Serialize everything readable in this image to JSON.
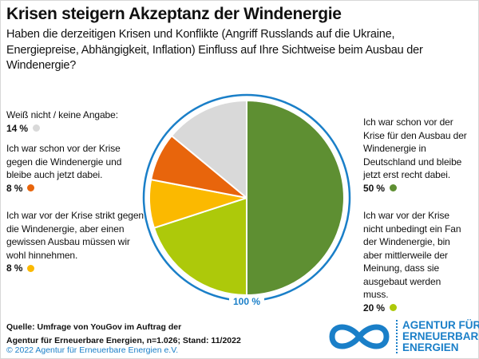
{
  "header": {
    "title": "Krisen steigern Akzeptanz der Windenergie",
    "question": "Haben die derzeitigen Krisen und Konflikte (Angriff Russlands auf die Ukraine, Energiepreise, Abhängigkeit, Inflation) Einfluss auf Ihre Sichtweise beim Ausbau der Windenergie?"
  },
  "chart_data": {
    "type": "pie",
    "title": "Krisen steigern Akzeptanz der Windenergie",
    "total_label": "100 %",
    "start": "12 o'clock, clockwise",
    "slices": [
      {
        "label": "Ich war schon vor der Krise für den Ausbau der Windenergie in Deutschland und bleibe jetzt erst recht dabei.",
        "value": 50,
        "value_label": "50 %",
        "color": "#5e8f32"
      },
      {
        "label": "Ich war vor der Krise nicht unbedingt ein Fan der Windenergie, bin aber mittlerweile der Meinung, dass sie ausgebaut werden muss.",
        "value": 20,
        "value_label": "20 %",
        "color": "#adc90a"
      },
      {
        "label": "Ich war vor der Krise strikt gegen die Windenergie, aber einen gewissen Ausbau müssen wir wohl hinnehmen.",
        "value": 8,
        "value_label": "8 %",
        "color": "#fbb900"
      },
      {
        "label": "Ich war schon vor der Krise gegen die Windenergie und bleibe auch jetzt dabei.",
        "value": 8,
        "value_label": "8 %",
        "color": "#e8650c"
      },
      {
        "label": "Weiß nicht / keine Angabe:",
        "value": 14,
        "value_label": "14 %",
        "color": "#d9d9d9"
      }
    ]
  },
  "footer": {
    "source_line1": "Quelle: Umfrage von YouGov im Auftrag der",
    "source_line2": "Agentur für Erneuerbare Energien, n=1.026; Stand: 11/2022",
    "copyright": "© 2022 Agentur für Erneuerbare Energien e.V.",
    "logo_lines": [
      "AGENTUR FÜR",
      "ERNEUERBARE",
      "ENERGIEN"
    ],
    "accent": "#1a7fc8"
  }
}
